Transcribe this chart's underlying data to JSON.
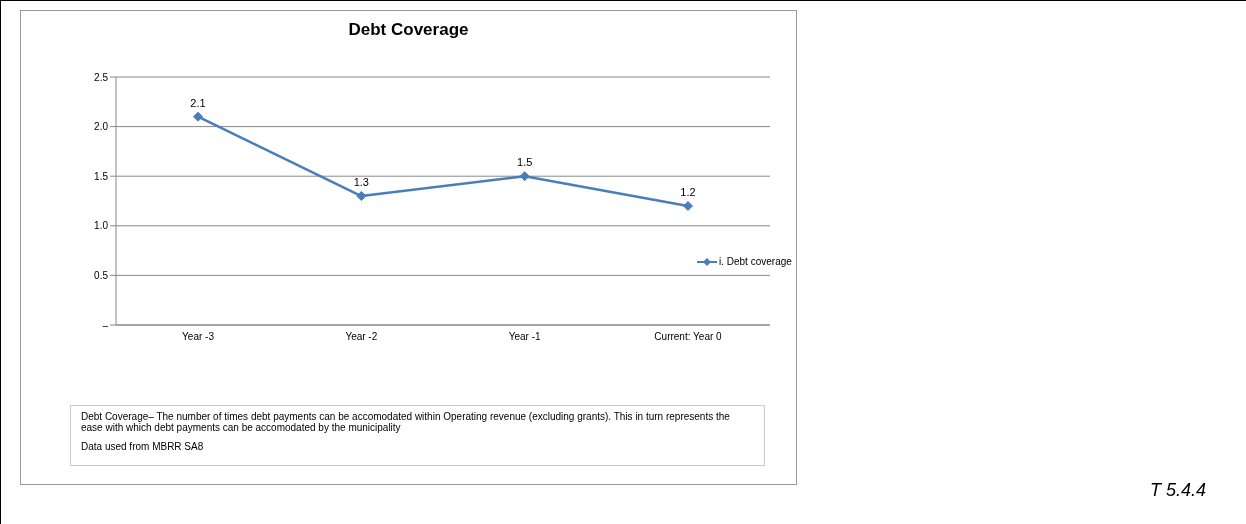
{
  "chart_data": {
    "type": "line",
    "title": "Debt Coverage",
    "categories": [
      "Year -3",
      "Year -2",
      "Year -1",
      "Current: Year 0"
    ],
    "series": [
      {
        "name": "i. Debt coverage",
        "color": "#4a7ebb",
        "values": [
          2.1,
          1.3,
          1.5,
          1.2
        ]
      }
    ],
    "ylim": [
      0,
      2.5
    ],
    "yticks": [
      {
        "value": 0,
        "label": "–"
      },
      {
        "value": 0.5,
        "label": "0.5"
      },
      {
        "value": 1,
        "label": "1.0"
      },
      {
        "value": 1.5,
        "label": "1.5"
      },
      {
        "value": 2,
        "label": "2.0"
      },
      {
        "value": 2.5,
        "label": "2.5"
      }
    ],
    "grid": "y",
    "legend": "right",
    "marker": "diamond",
    "line_style": "solid",
    "data_labels": true,
    "annotations": [
      "Debt Coverage– The number of times debt payments can be accomodated within Operating revenue (excluding grants). This in turn represents the ease with which debt payments can be accomodated by the municipality",
      "Data used from MBRR SA8",
      "T 5.4.4"
    ]
  }
}
